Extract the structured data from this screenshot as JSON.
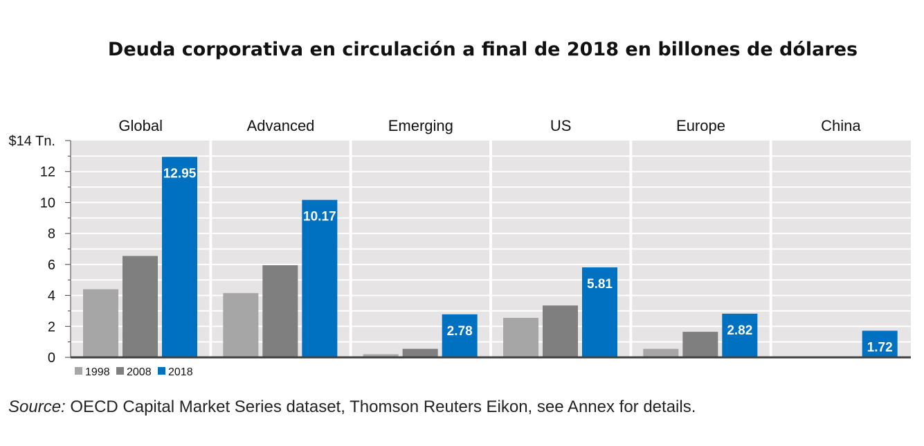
{
  "title": "Deuda corporativa en circulación a final de 2018 en billones de dólares",
  "source_label": "Source:",
  "source_text": " OECD Capital Market Series dataset, Thomson Reuters Eikon, see Annex for details.",
  "colors": {
    "1998": "#a6a6a6",
    "2008": "#7f7f7f",
    "2018": "#0070c0",
    "panel_bg": "#e6e4e4",
    "gridline": "#ffffff",
    "axis": "#404040"
  },
  "chart_data": {
    "type": "bar",
    "title": "Deuda corporativa en circulación a final de 2018 en billones de dólares",
    "categories": [
      "Global",
      "Advanced",
      "Emerging",
      "US",
      "Europe",
      "China"
    ],
    "series": [
      {
        "name": "1998",
        "values": [
          4.4,
          4.15,
          0.2,
          2.55,
          0.55,
          null
        ]
      },
      {
        "name": "2008",
        "values": [
          6.55,
          5.95,
          0.55,
          3.35,
          1.65,
          null
        ]
      },
      {
        "name": "2018",
        "values": [
          12.95,
          10.17,
          2.78,
          5.81,
          2.82,
          1.72
        ]
      }
    ],
    "data_labels": [
      "12.95",
      "10.17",
      "2.78",
      "5.81",
      "2.82",
      "1.72"
    ],
    "ylim": [
      0,
      14
    ],
    "y_ticks": [
      0,
      2,
      4,
      6,
      8,
      10,
      12,
      14
    ],
    "y_tick_labels": [
      "0",
      "2",
      "4",
      "6",
      "8",
      "10",
      "12",
      "$14 Tn."
    ],
    "xlabel": "",
    "ylabel": "",
    "grid": true,
    "legend": {
      "placement": "bottom-left",
      "entries": [
        "1998",
        "2008",
        "2018"
      ]
    }
  }
}
